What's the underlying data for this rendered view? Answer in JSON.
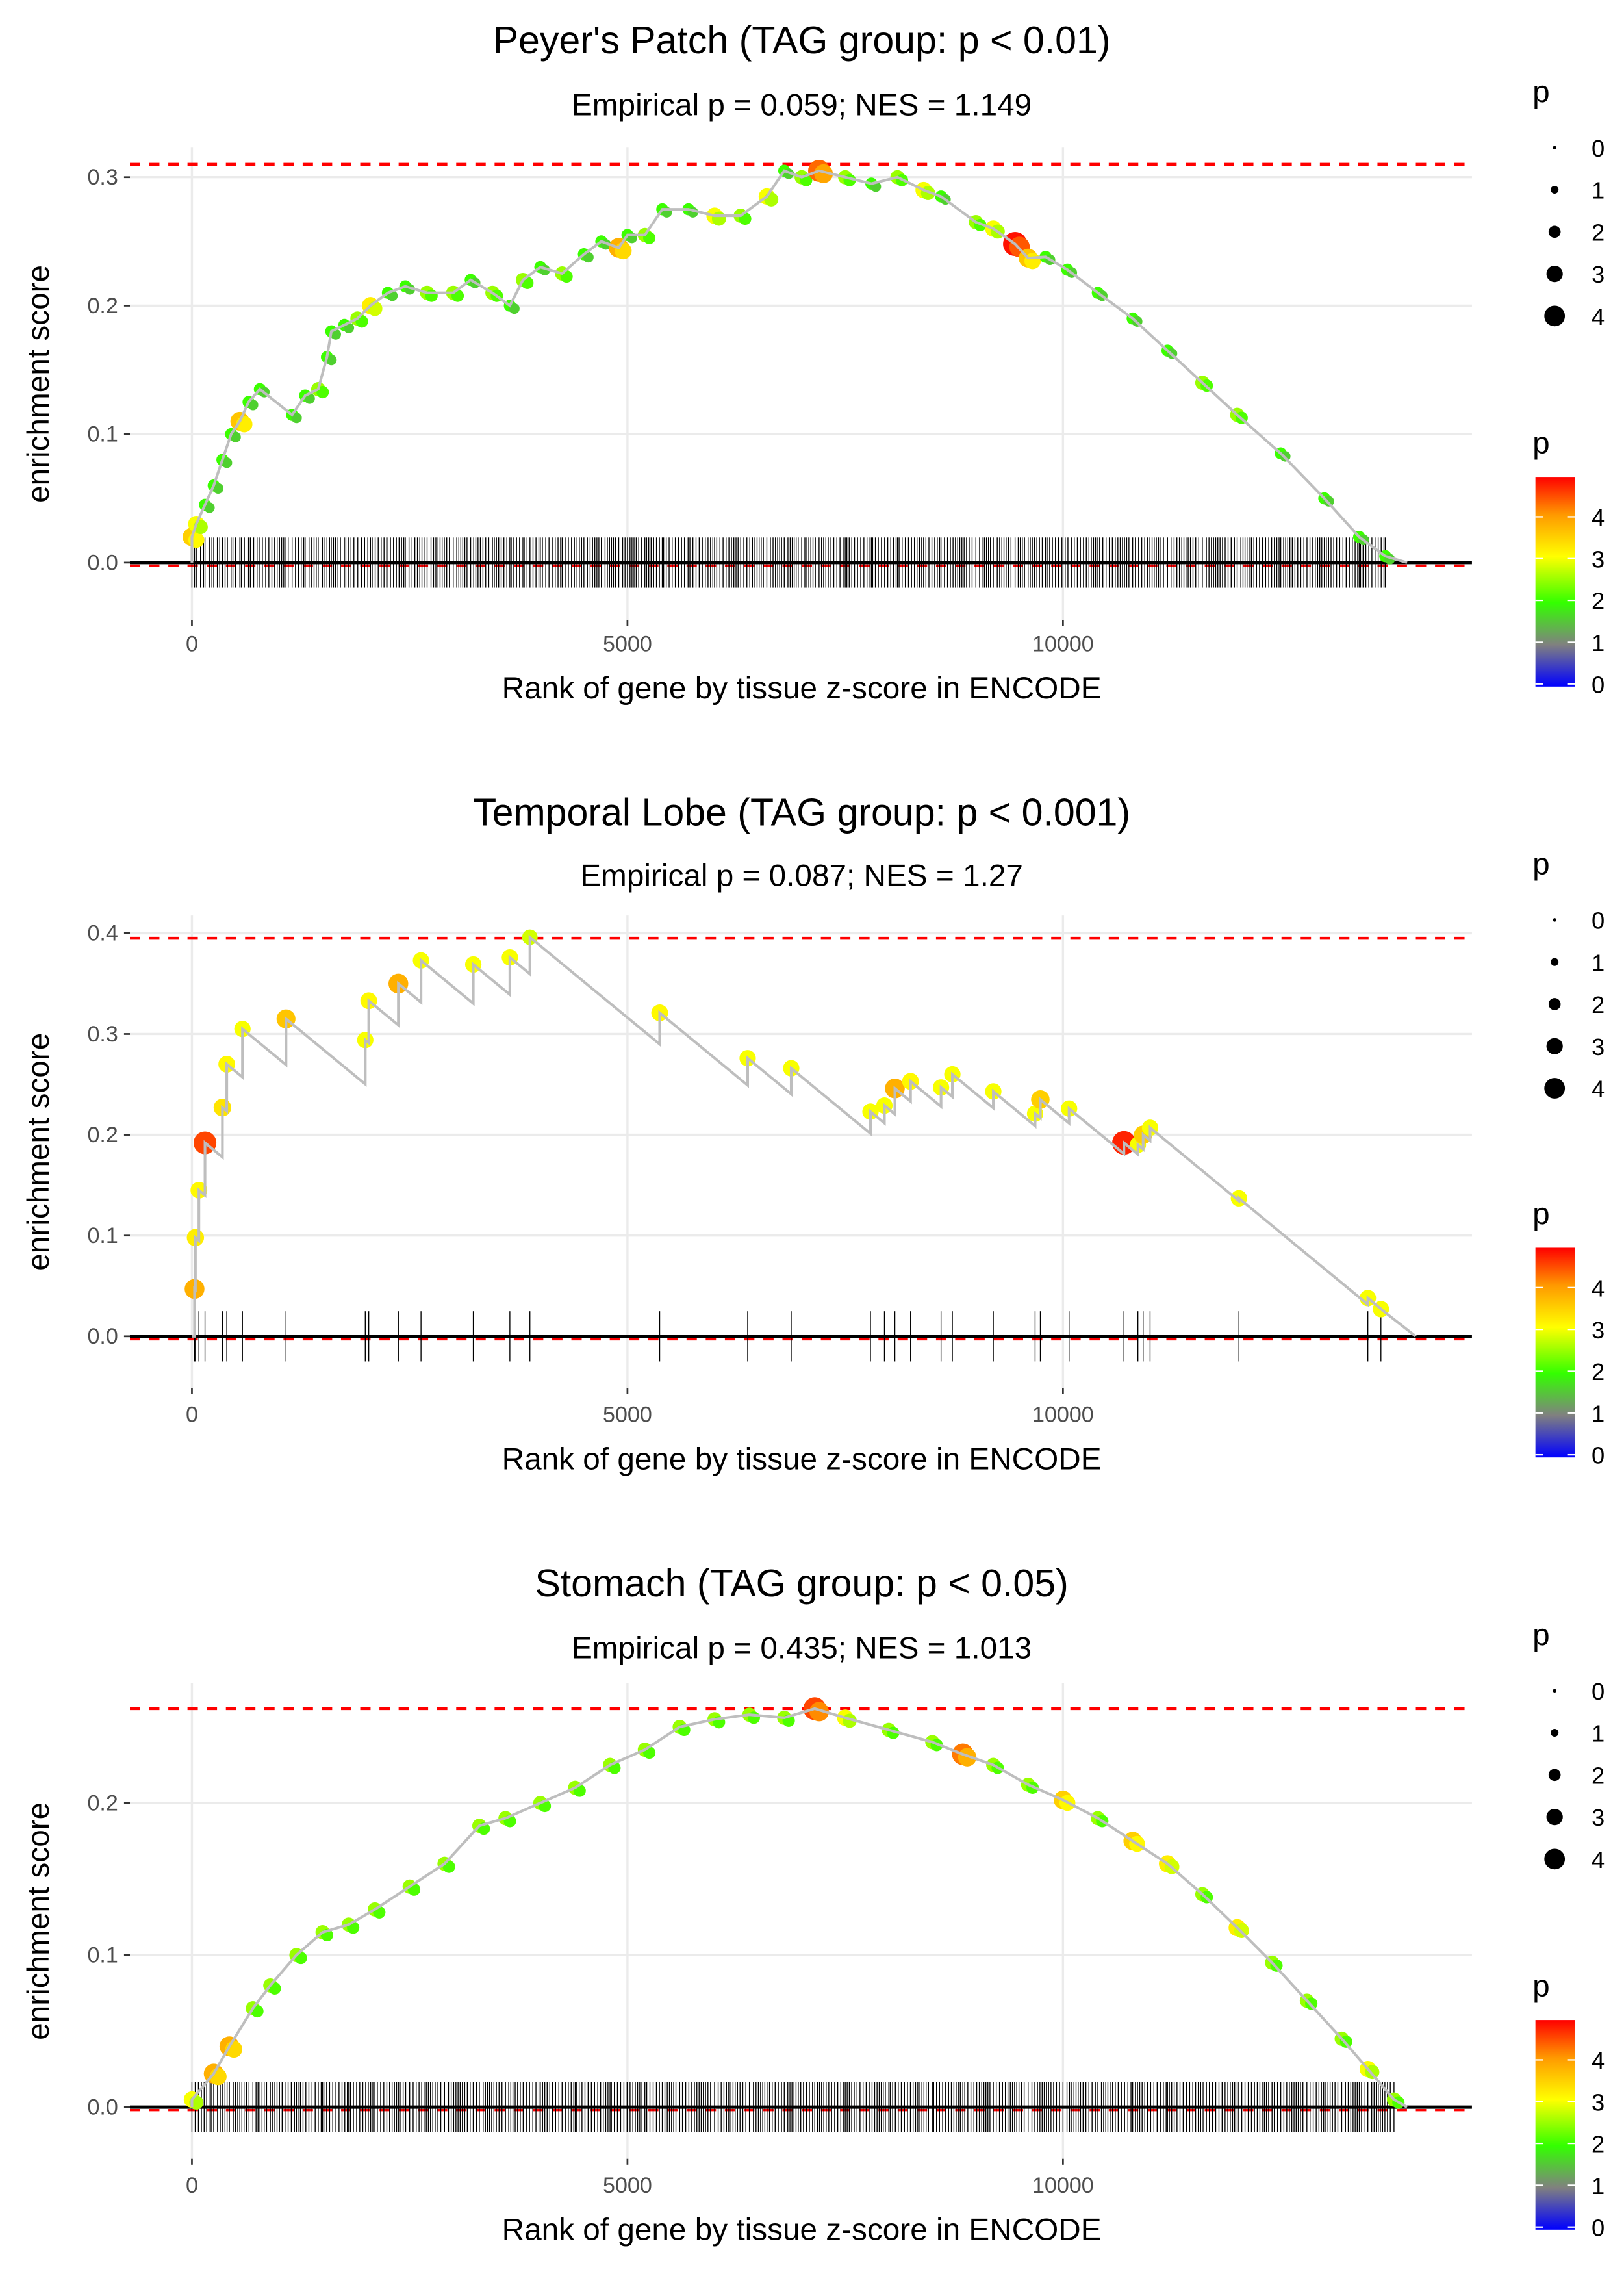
{
  "chart_data": [
    {
      "type": "line",
      "title": "Peyer's Patch (TAG group: p < 0.01)",
      "subtitle": "Empirical p = 0.059; NES = 1.149",
      "xlabel": "Rank of gene by tissue z-score in ENCODE",
      "ylabel": "enrichment score",
      "xlim": [
        -700,
        14700
      ],
      "ylim": [
        -0.04,
        0.33
      ],
      "xticks": [
        0,
        5000,
        10000
      ],
      "xtick_labels": [
        "0",
        "5000",
        "10000"
      ],
      "yticks": [
        0.0,
        0.1,
        0.2,
        0.3
      ],
      "ytick_labels": [
        "0.0",
        "0.1",
        "0.2",
        "0.3"
      ],
      "max_es": 0.31,
      "step": false,
      "end_rank": 13950,
      "points": [
        [
          0,
          0.02,
          3.5
        ],
        [
          50,
          0.03,
          3.0
        ],
        [
          150,
          0.045,
          2.0
        ],
        [
          250,
          0.06,
          2.0
        ],
        [
          350,
          0.08,
          2.0
        ],
        [
          450,
          0.1,
          2.0
        ],
        [
          550,
          0.11,
          3.6
        ],
        [
          650,
          0.125,
          2.0
        ],
        [
          780,
          0.135,
          2.0
        ],
        [
          1150,
          0.115,
          2.0
        ],
        [
          1300,
          0.13,
          2.0
        ],
        [
          1450,
          0.135,
          2.5
        ],
        [
          1550,
          0.16,
          2.0
        ],
        [
          1600,
          0.18,
          2.0
        ],
        [
          1750,
          0.185,
          2.0
        ],
        [
          1900,
          0.19,
          2.5
        ],
        [
          2050,
          0.2,
          3.2
        ],
        [
          2250,
          0.21,
          2.0
        ],
        [
          2450,
          0.215,
          2.0
        ],
        [
          2700,
          0.21,
          2.5
        ],
        [
          3000,
          0.21,
          2.5
        ],
        [
          3200,
          0.22,
          2.0
        ],
        [
          3450,
          0.21,
          2.5
        ],
        [
          3650,
          0.2,
          2.0
        ],
        [
          3800,
          0.22,
          2.5
        ],
        [
          4000,
          0.23,
          2.0
        ],
        [
          4250,
          0.225,
          2.5
        ],
        [
          4500,
          0.24,
          2.0
        ],
        [
          4700,
          0.25,
          2.0
        ],
        [
          4900,
          0.245,
          3.8
        ],
        [
          5000,
          0.255,
          2.0
        ],
        [
          5200,
          0.255,
          2.5
        ],
        [
          5400,
          0.275,
          2.0
        ],
        [
          5700,
          0.275,
          2.0
        ],
        [
          6000,
          0.27,
          3.0
        ],
        [
          6300,
          0.27,
          2.5
        ],
        [
          6600,
          0.285,
          3.0
        ],
        [
          6800,
          0.305,
          2.0
        ],
        [
          7000,
          0.3,
          2.5
        ],
        [
          7200,
          0.305,
          4.3
        ],
        [
          7500,
          0.3,
          2.5
        ],
        [
          7800,
          0.295,
          2.0
        ],
        [
          8100,
          0.3,
          2.5
        ],
        [
          8400,
          0.29,
          3.0
        ],
        [
          8600,
          0.285,
          2.0
        ],
        [
          9000,
          0.265,
          2.5
        ],
        [
          9200,
          0.26,
          3.0
        ],
        [
          9450,
          0.248,
          4.8
        ],
        [
          9600,
          0.237,
          3.6
        ],
        [
          9800,
          0.238,
          2.0
        ],
        [
          10050,
          0.228,
          2.0
        ],
        [
          10400,
          0.21,
          2.0
        ],
        [
          10800,
          0.19,
          2.0
        ],
        [
          11200,
          0.165,
          2.0
        ],
        [
          11600,
          0.14,
          2.5
        ],
        [
          12000,
          0.115,
          2.5
        ],
        [
          12500,
          0.085,
          2.0
        ],
        [
          13000,
          0.05,
          2.0
        ],
        [
          13400,
          0.02,
          2.0
        ],
        [
          13700,
          0.005,
          2.0
        ]
      ]
    },
    {
      "type": "line",
      "title": "Temporal Lobe (TAG group: p < 0.001)",
      "subtitle": "Empirical p = 0.087; NES = 1.27",
      "xlabel": "Rank of gene by tissue z-score in ENCODE",
      "ylabel": "enrichment score",
      "xlim": [
        -700,
        14700
      ],
      "ylim": [
        -0.045,
        0.42
      ],
      "xticks": [
        0,
        5000,
        10000
      ],
      "xtick_labels": [
        "0",
        "5000",
        "10000"
      ],
      "yticks": [
        0.0,
        0.1,
        0.2,
        0.3,
        0.4
      ],
      "ytick_labels": [
        "0.0",
        "0.1",
        "0.2",
        "0.3",
        "0.4"
      ],
      "max_es": 0.395,
      "step": true,
      "decay_per_rank": 7.12e-05,
      "end_rank": 14050,
      "points": [
        [
          30,
          0.047,
          3.8
        ],
        [
          40,
          0.098,
          3.2
        ],
        [
          80,
          0.145,
          3.1
        ],
        [
          150,
          0.192,
          4.5
        ],
        [
          350,
          0.227,
          3.3
        ],
        [
          400,
          0.27,
          3.1
        ],
        [
          580,
          0.305,
          3.0
        ],
        [
          1080,
          0.315,
          3.6
        ],
        [
          1990,
          0.294,
          3.0
        ],
        [
          2030,
          0.333,
          3.1
        ],
        [
          2370,
          0.35,
          3.8
        ],
        [
          2630,
          0.373,
          3.0
        ],
        [
          3230,
          0.369,
          3.0
        ],
        [
          3650,
          0.376,
          3.0
        ],
        [
          3880,
          0.396,
          2.8
        ],
        [
          5370,
          0.321,
          3.1
        ],
        [
          6380,
          0.276,
          3.0
        ],
        [
          6880,
          0.266,
          3.0
        ],
        [
          7790,
          0.223,
          3.0
        ],
        [
          7950,
          0.229,
          3.0
        ],
        [
          8070,
          0.246,
          3.8
        ],
        [
          8250,
          0.253,
          3.1
        ],
        [
          8600,
          0.247,
          3.0
        ],
        [
          8730,
          0.26,
          3.0
        ],
        [
          9200,
          0.243,
          3.0
        ],
        [
          9680,
          0.221,
          3.0
        ],
        [
          9740,
          0.235,
          3.5
        ],
        [
          10070,
          0.226,
          3.0
        ],
        [
          10700,
          0.192,
          4.7
        ],
        [
          10860,
          0.19,
          3.0
        ],
        [
          10920,
          0.2,
          3.5
        ],
        [
          11000,
          0.207,
          3.0
        ],
        [
          12020,
          0.137,
          3.0
        ],
        [
          13500,
          0.038,
          3.0
        ],
        [
          13650,
          0.027,
          3.0
        ]
      ]
    },
    {
      "type": "line",
      "title": "Stomach (TAG group: p < 0.05)",
      "subtitle": "Empirical p = 0.435; NES = 1.013",
      "xlabel": "Rank of gene by tissue z-score in ENCODE",
      "ylabel": "enrichment score",
      "xlim": [
        -700,
        14700
      ],
      "ylim": [
        -0.034,
        0.28
      ],
      "xticks": [
        0,
        5000,
        10000
      ],
      "xtick_labels": [
        "0",
        "5000",
        "10000"
      ],
      "yticks": [
        0.0,
        0.1,
        0.2
      ],
      "ytick_labels": [
        "0.0",
        "0.1",
        "0.2"
      ],
      "max_es": 0.262,
      "step": false,
      "end_rank": 13950,
      "points": [
        [
          0,
          0.005,
          3.0
        ],
        [
          250,
          0.022,
          3.8
        ],
        [
          430,
          0.04,
          3.8
        ],
        [
          700,
          0.065,
          2.5
        ],
        [
          900,
          0.08,
          2.5
        ],
        [
          1200,
          0.1,
          2.5
        ],
        [
          1500,
          0.115,
          2.5
        ],
        [
          1800,
          0.12,
          2.5
        ],
        [
          2100,
          0.13,
          2.5
        ],
        [
          2500,
          0.145,
          2.5
        ],
        [
          2900,
          0.16,
          2.5
        ],
        [
          3300,
          0.185,
          2.5
        ],
        [
          3600,
          0.19,
          2.5
        ],
        [
          4000,
          0.2,
          2.5
        ],
        [
          4400,
          0.21,
          2.5
        ],
        [
          4800,
          0.225,
          2.5
        ],
        [
          5200,
          0.235,
          2.5
        ],
        [
          5600,
          0.25,
          2.5
        ],
        [
          6000,
          0.255,
          2.5
        ],
        [
          6400,
          0.258,
          2.5
        ],
        [
          6800,
          0.256,
          2.5
        ],
        [
          7150,
          0.262,
          4.5
        ],
        [
          7500,
          0.256,
          3.0
        ],
        [
          8000,
          0.248,
          2.5
        ],
        [
          8500,
          0.24,
          2.5
        ],
        [
          8850,
          0.232,
          4.2
        ],
        [
          9200,
          0.225,
          2.5
        ],
        [
          9600,
          0.212,
          2.5
        ],
        [
          10000,
          0.202,
          3.5
        ],
        [
          10400,
          0.19,
          2.5
        ],
        [
          10800,
          0.175,
          3.5
        ],
        [
          11200,
          0.16,
          3.2
        ],
        [
          11600,
          0.14,
          2.5
        ],
        [
          12000,
          0.118,
          3.2
        ],
        [
          12400,
          0.095,
          2.5
        ],
        [
          12800,
          0.07,
          2.5
        ],
        [
          13200,
          0.045,
          2.5
        ],
        [
          13500,
          0.025,
          3.0
        ],
        [
          13800,
          0.005,
          2.5
        ]
      ]
    }
  ],
  "legend": {
    "size_title": "p",
    "size_labels": [
      "0",
      "1",
      "2",
      "3",
      "4"
    ],
    "color_title": "p",
    "color_labels": [
      "4",
      "3",
      "2",
      "1",
      "0"
    ]
  },
  "colors": {
    "max_line": "#ff0000",
    "running_line": "#bebebe",
    "gradient": [
      "#0000ff",
      "#808080",
      "#33ff00",
      "#ffff00",
      "#ff9900",
      "#ff0000"
    ]
  }
}
